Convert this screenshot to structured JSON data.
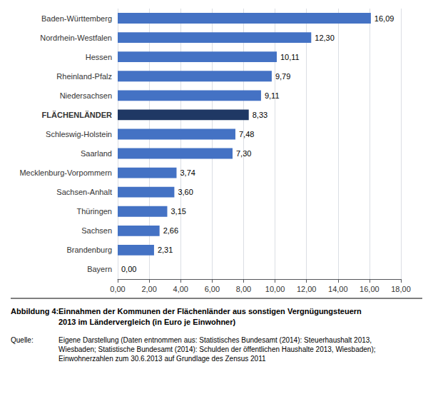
{
  "chart_data": {
    "type": "bar",
    "orientation": "horizontal",
    "categories": [
      "Baden-Württemberg",
      "Nordrhein-Westfalen",
      "Hessen",
      "Rheinland-Pfalz",
      "Niedersachsen",
      "FLÄCHENLÄNDER",
      "Schleswig-Holstein",
      "Saarland",
      "Mecklenburg-Vorpommern",
      "Sachsen-Anhalt",
      "Thüringen",
      "Sachsen",
      "Brandenburg",
      "Bayern"
    ],
    "values": [
      16.09,
      12.3,
      10.11,
      9.79,
      9.11,
      8.33,
      7.48,
      7.3,
      3.74,
      3.6,
      3.15,
      2.66,
      2.31,
      0.0
    ],
    "value_labels": [
      "16,09",
      "12,30",
      "10,11",
      "9,79",
      "9,11",
      "8,33",
      "7,48",
      "7,30",
      "3,74",
      "3,60",
      "3,15",
      "2,66",
      "2,31",
      "0,00"
    ],
    "data_labels": true,
    "colors": [
      "#4472C4",
      "#4472C4",
      "#4472C4",
      "#4472C4",
      "#4472C4",
      "#1F3864",
      "#4472C4",
      "#4472C4",
      "#4472C4",
      "#4472C4",
      "#4472C4",
      "#4472C4",
      "#4472C4",
      "#4472C4"
    ],
    "xlim": [
      0,
      18
    ],
    "xticks": [
      {
        "value": 0,
        "label": "0,00"
      },
      {
        "value": 2,
        "label": "2,00"
      },
      {
        "value": 4,
        "label": "4,00"
      },
      {
        "value": 6,
        "label": "6,00"
      },
      {
        "value": 8,
        "label": "8,00"
      },
      {
        "value": 10,
        "label": "10,00"
      },
      {
        "value": 12,
        "label": "12,00"
      },
      {
        "value": 14,
        "label": "14,00"
      },
      {
        "value": 16,
        "label": "16,00"
      },
      {
        "value": 18,
        "label": "18,00"
      }
    ],
    "grid": true,
    "annotations": [
      {
        "label": "Abbildung 4:",
        "text": "Einnahmen der Kommunen der Flächenländer aus sonstigen Vergnügungsteuern\n2013 im Ländervergleich (in Euro je Einwohner)"
      },
      {
        "label": "Quelle:",
        "text": "Eigene Darstellung (Daten entnommen aus: Statistisches Bundesamt (2014): Steuerhaushalt 2013,\nWiesbaden; Statistische Bundesamt (2014): Schulden der öffentlichen Haushalte 2013, Wiesbaden);\nEinwohnerzahlen zum 30.6.2013 auf Grundlage des Zensus 2011"
      }
    ]
  }
}
